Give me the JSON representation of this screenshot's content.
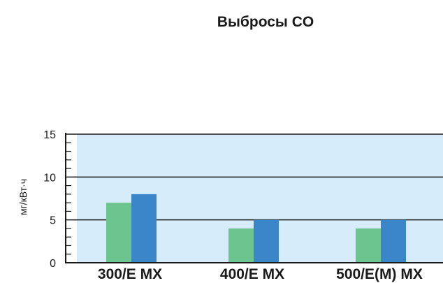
{
  "chart_data": {
    "type": "bar",
    "title": "Выбросы CO",
    "xlabel": "",
    "ylabel": "мг/кВт·ч",
    "categories": [
      "300/E MX",
      "400/E MX",
      "500/E(M) MX"
    ],
    "series": [
      {
        "values": [
          7,
          4,
          4
        ],
        "color": "#6cc48f"
      },
      {
        "values": [
          8,
          5,
          5
        ],
        "color": "#3a86c8"
      }
    ],
    "ylim": [
      0,
      15
    ],
    "yticks": [
      0,
      5,
      10,
      15
    ],
    "grid": true,
    "legend": "none",
    "background": "#d6ecfb"
  }
}
